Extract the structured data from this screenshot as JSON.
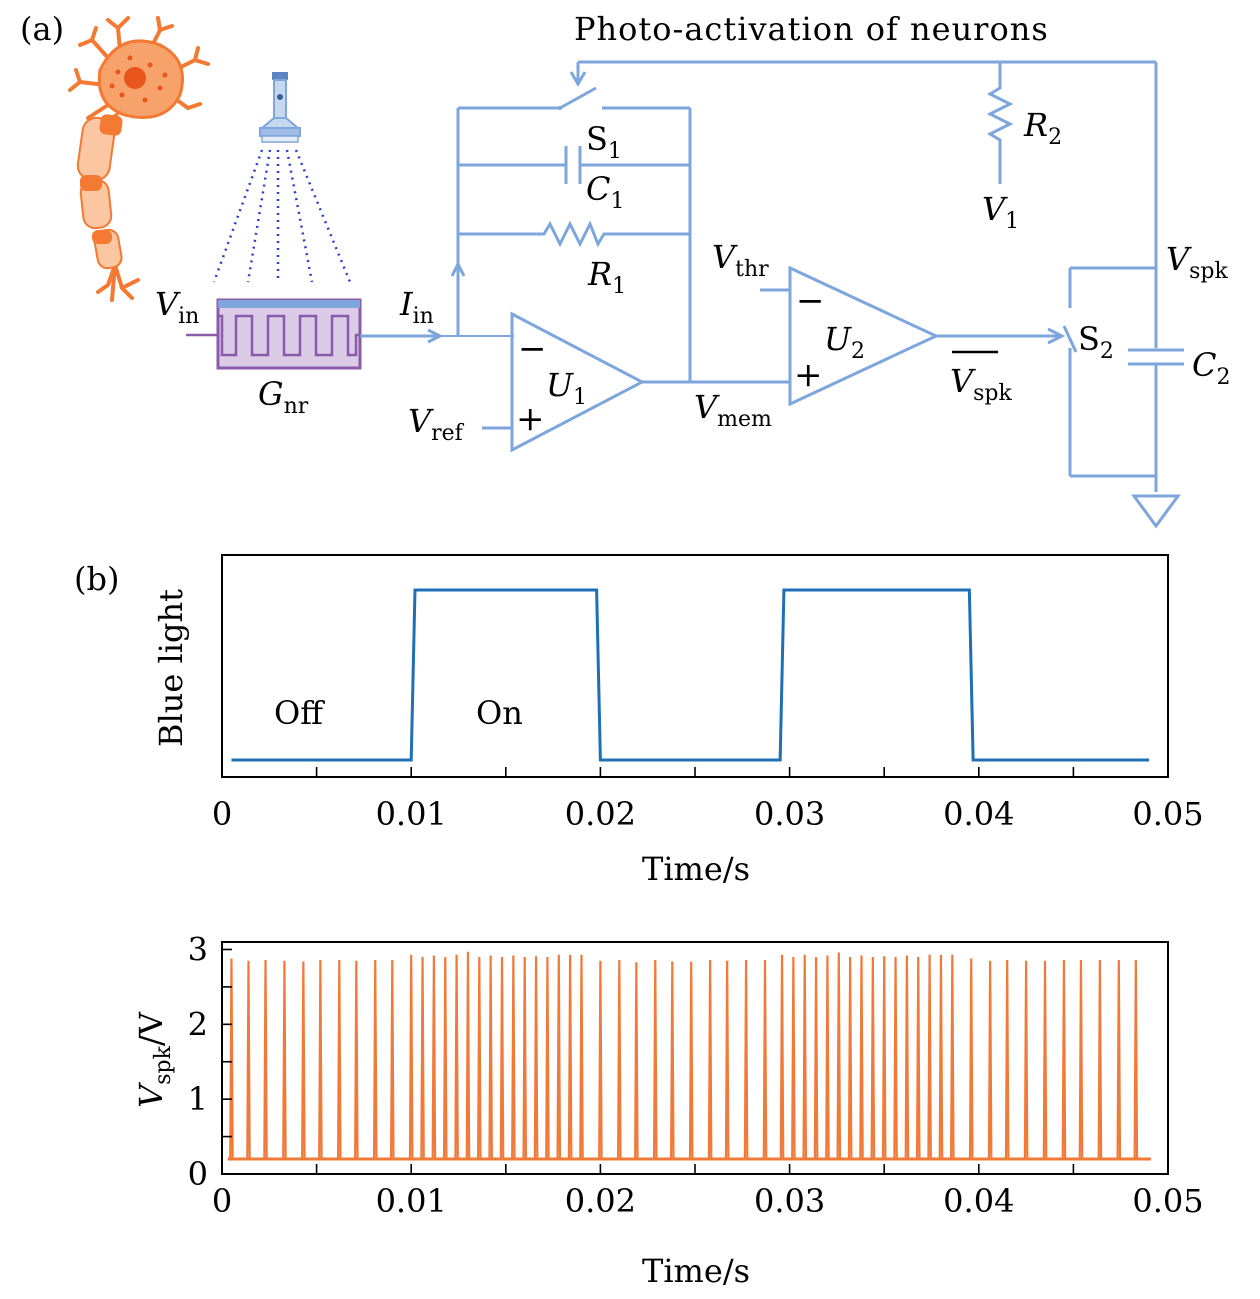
{
  "panel_a": {
    "label": "(a)",
    "title": "Photo-activation of neurons",
    "components": {
      "v_in": {
        "main": "V",
        "sub": "in"
      },
      "g_nr": {
        "main": "G",
        "sub": "nr"
      },
      "i_in": {
        "main": "I",
        "sub": "in"
      },
      "s1": {
        "main": "S",
        "sub": "1"
      },
      "c1": {
        "main": "C",
        "sub": "1"
      },
      "r1": {
        "main": "R",
        "sub": "1"
      },
      "r2": {
        "main": "R",
        "sub": "2"
      },
      "v1": {
        "main": "V",
        "sub": "1"
      },
      "u1": {
        "main": "U",
        "sub": "1"
      },
      "u2": {
        "main": "U",
        "sub": "2"
      },
      "v_ref": {
        "main": "V",
        "sub": "ref"
      },
      "v_mem": {
        "main": "V",
        "sub": "mem"
      },
      "v_thr": {
        "main": "V",
        "sub": "thr"
      },
      "v_spk_top": {
        "main": "V",
        "sub": "spk"
      },
      "v_spk_bar": {
        "main": "V",
        "sub": "spk"
      },
      "s2": {
        "main": "S",
        "sub": "2"
      },
      "c2": {
        "main": "C",
        "sub": "2"
      },
      "minus": "−",
      "plus": "+"
    }
  },
  "panel_b": {
    "label": "(b)",
    "top_chart": {
      "ylabel": "Blue light",
      "xlabel": "Time/s",
      "annotations": {
        "off": "Off",
        "on": "On"
      },
      "x_ticks": [
        "0",
        "0.01",
        "0.02",
        "0.03",
        "0.04",
        "0.05"
      ]
    },
    "bottom_chart": {
      "ylabel_main": "V",
      "ylabel_sub": "spk",
      "ylabel_unit": "/V",
      "xlabel": "Time/s",
      "x_ticks": [
        "0",
        "0.01",
        "0.02",
        "0.03",
        "0.04",
        "0.05"
      ],
      "y_ticks": [
        "0",
        "1",
        "2",
        "3"
      ]
    }
  },
  "colors": {
    "circuit": "#7ea6dc",
    "light_signal": "#1f6fb5",
    "spike_signal": "#f07a3a",
    "neuron": "#f47a33",
    "memristor": "#8a5ba8"
  },
  "chart_data": [
    {
      "type": "line",
      "ylabel": "Blue light",
      "xlabel": "Time/s",
      "xlim": [
        0,
        0.05
      ],
      "series": [
        {
          "x": [
            0.0005,
            0.01,
            0.0102,
            0.0198,
            0.02,
            0.0295,
            0.0297,
            0.0395,
            0.0397,
            0.049
          ],
          "y": [
            0,
            0,
            1,
            1,
            0,
            0,
            1,
            1,
            0,
            0
          ]
        }
      ],
      "annotations": [
        "Off",
        "On"
      ],
      "grid": false
    },
    {
      "type": "line",
      "ylabel": "Vspk/V",
      "xlabel": "Time/s",
      "xlim": [
        0,
        0.05
      ],
      "ylim": [
        0,
        3.1
      ],
      "baseline": 0.2,
      "spikes": [
        {
          "t": 0.0005,
          "v": 2.88
        },
        {
          "t": 0.0014,
          "v": 2.85
        },
        {
          "t": 0.0023,
          "v": 2.86
        },
        {
          "t": 0.0033,
          "v": 2.85
        },
        {
          "t": 0.0043,
          "v": 2.84
        },
        {
          "t": 0.0052,
          "v": 2.86
        },
        {
          "t": 0.0062,
          "v": 2.86
        },
        {
          "t": 0.0071,
          "v": 2.85
        },
        {
          "t": 0.0081,
          "v": 2.86
        },
        {
          "t": 0.009,
          "v": 2.86
        },
        {
          "t": 0.01,
          "v": 2.93
        },
        {
          "t": 0.0106,
          "v": 2.9
        },
        {
          "t": 0.0112,
          "v": 2.92
        },
        {
          "t": 0.0118,
          "v": 2.9
        },
        {
          "t": 0.0124,
          "v": 2.93
        },
        {
          "t": 0.013,
          "v": 2.97
        },
        {
          "t": 0.0136,
          "v": 2.9
        },
        {
          "t": 0.0142,
          "v": 2.92
        },
        {
          "t": 0.0148,
          "v": 2.9
        },
        {
          "t": 0.0154,
          "v": 2.92
        },
        {
          "t": 0.016,
          "v": 2.9
        },
        {
          "t": 0.0166,
          "v": 2.91
        },
        {
          "t": 0.0172,
          "v": 2.9
        },
        {
          "t": 0.0178,
          "v": 2.93
        },
        {
          "t": 0.0184,
          "v": 2.93
        },
        {
          "t": 0.019,
          "v": 2.93
        },
        {
          "t": 0.02,
          "v": 2.85
        },
        {
          "t": 0.021,
          "v": 2.86
        },
        {
          "t": 0.0219,
          "v": 2.83
        },
        {
          "t": 0.0229,
          "v": 2.86
        },
        {
          "t": 0.0238,
          "v": 2.84
        },
        {
          "t": 0.0248,
          "v": 2.84
        },
        {
          "t": 0.0258,
          "v": 2.86
        },
        {
          "t": 0.0267,
          "v": 2.85
        },
        {
          "t": 0.0277,
          "v": 2.86
        },
        {
          "t": 0.0287,
          "v": 2.86
        },
        {
          "t": 0.0296,
          "v": 2.93
        },
        {
          "t": 0.0302,
          "v": 2.9
        },
        {
          "t": 0.0308,
          "v": 2.93
        },
        {
          "t": 0.0314,
          "v": 2.9
        },
        {
          "t": 0.032,
          "v": 2.92
        },
        {
          "t": 0.0326,
          "v": 2.96
        },
        {
          "t": 0.0332,
          "v": 2.9
        },
        {
          "t": 0.0338,
          "v": 2.92
        },
        {
          "t": 0.0344,
          "v": 2.9
        },
        {
          "t": 0.035,
          "v": 2.91
        },
        {
          "t": 0.0356,
          "v": 2.9
        },
        {
          "t": 0.0362,
          "v": 2.92
        },
        {
          "t": 0.0368,
          "v": 2.9
        },
        {
          "t": 0.0374,
          "v": 2.93
        },
        {
          "t": 0.038,
          "v": 2.93
        },
        {
          "t": 0.0386,
          "v": 2.93
        },
        {
          "t": 0.0396,
          "v": 2.88
        },
        {
          "t": 0.0406,
          "v": 2.85
        },
        {
          "t": 0.0415,
          "v": 2.86
        },
        {
          "t": 0.0425,
          "v": 2.85
        },
        {
          "t": 0.0435,
          "v": 2.85
        },
        {
          "t": 0.0445,
          "v": 2.86
        },
        {
          "t": 0.0454,
          "v": 2.86
        },
        {
          "t": 0.0464,
          "v": 2.86
        },
        {
          "t": 0.0474,
          "v": 2.86
        },
        {
          "t": 0.0483,
          "v": 2.86
        }
      ],
      "grid": false
    }
  ]
}
